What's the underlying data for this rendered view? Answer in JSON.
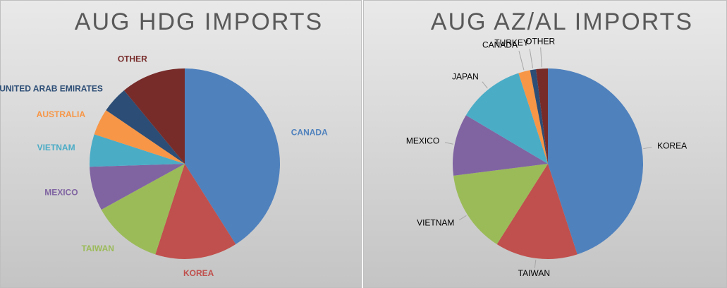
{
  "chart_data": [
    {
      "type": "pie",
      "title": "AUG HDG IMPORTS",
      "labels_colored": true,
      "categories": [
        "CANADA",
        "KOREA",
        "TAIWAN",
        "MEXICO",
        "VIETNAM",
        "AUSTRALIA",
        "UNITED ARAB EMIRATES",
        "OTHER"
      ],
      "values": [
        41,
        14,
        12,
        7.5,
        5.5,
        4.5,
        4.5,
        11
      ],
      "colors": [
        "#4f81bd",
        "#c0504d",
        "#9bbb59",
        "#8064a2",
        "#4bacc6",
        "#f79646",
        "#2c4d75",
        "#772c2a"
      ]
    },
    {
      "type": "pie",
      "title": "AUG AZ/AL IMPORTS",
      "labels_colored": false,
      "categories": [
        "KOREA",
        "TAIWAN",
        "VIETNAM",
        "MEXICO",
        "JAPAN",
        "CANADA",
        "TURKEY",
        "OTHER"
      ],
      "values": [
        45,
        14,
        14,
        10.5,
        11.5,
        2,
        1,
        2
      ],
      "colors": [
        "#4f81bd",
        "#c0504d",
        "#9bbb59",
        "#8064a2",
        "#4bacc6",
        "#f79646",
        "#2c4d75",
        "#772c2a"
      ]
    }
  ]
}
